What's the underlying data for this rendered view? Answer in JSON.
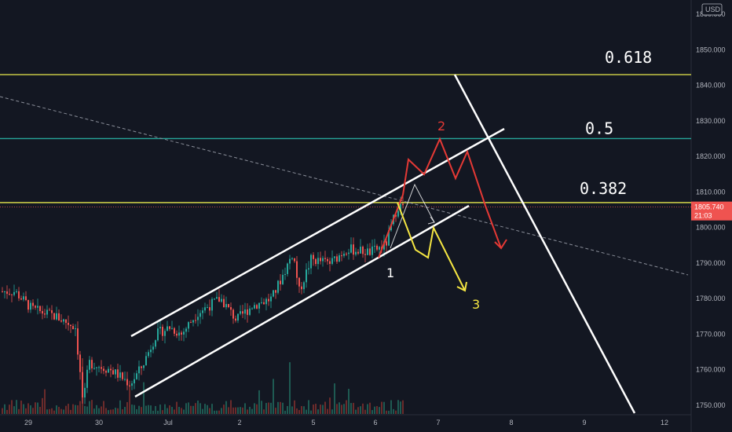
{
  "chart_data": {
    "type": "candlestick",
    "currency": "USD",
    "ylim": [
      1748,
      1864
    ],
    "y_ticks": [
      1750,
      1760,
      1770,
      1780,
      1790,
      1800,
      1810,
      1820,
      1830,
      1840,
      1850,
      1860
    ],
    "y_tick_labels": [
      "1750.000",
      "1760.000",
      "1770.000",
      "1780.000",
      "1790.000",
      "1800.000",
      "1810.000",
      "1820.000",
      "1830.000",
      "1840.000",
      "1850.000",
      "1860.000"
    ],
    "x_labels": [
      "29",
      "30",
      "Jul",
      "2",
      "5",
      "6",
      "7",
      "8",
      "9",
      "12"
    ],
    "current_price": "1805.740",
    "countdown": "21:03",
    "fib_levels": [
      {
        "label": "0.618",
        "value": 1843.0,
        "color": "#e8e84c"
      },
      {
        "label": "0.5",
        "value": 1825.0,
        "color": "#26a69a"
      },
      {
        "label": "0.382",
        "value": 1807.0,
        "color": "#e8e84c"
      }
    ],
    "wave_labels": [
      {
        "text": "1",
        "color": "#ffffff"
      },
      {
        "text": "2",
        "color": "#e53935"
      },
      {
        "text": "3",
        "color": "#f5e642"
      }
    ],
    "colors": {
      "background": "#131722",
      "up": "#26a69a",
      "down": "#ef5350",
      "channel": "#ffffff",
      "path_red": "#e53935",
      "path_yellow": "#f5e642",
      "badge": "#ef5350",
      "volume": "#3b5348"
    }
  }
}
